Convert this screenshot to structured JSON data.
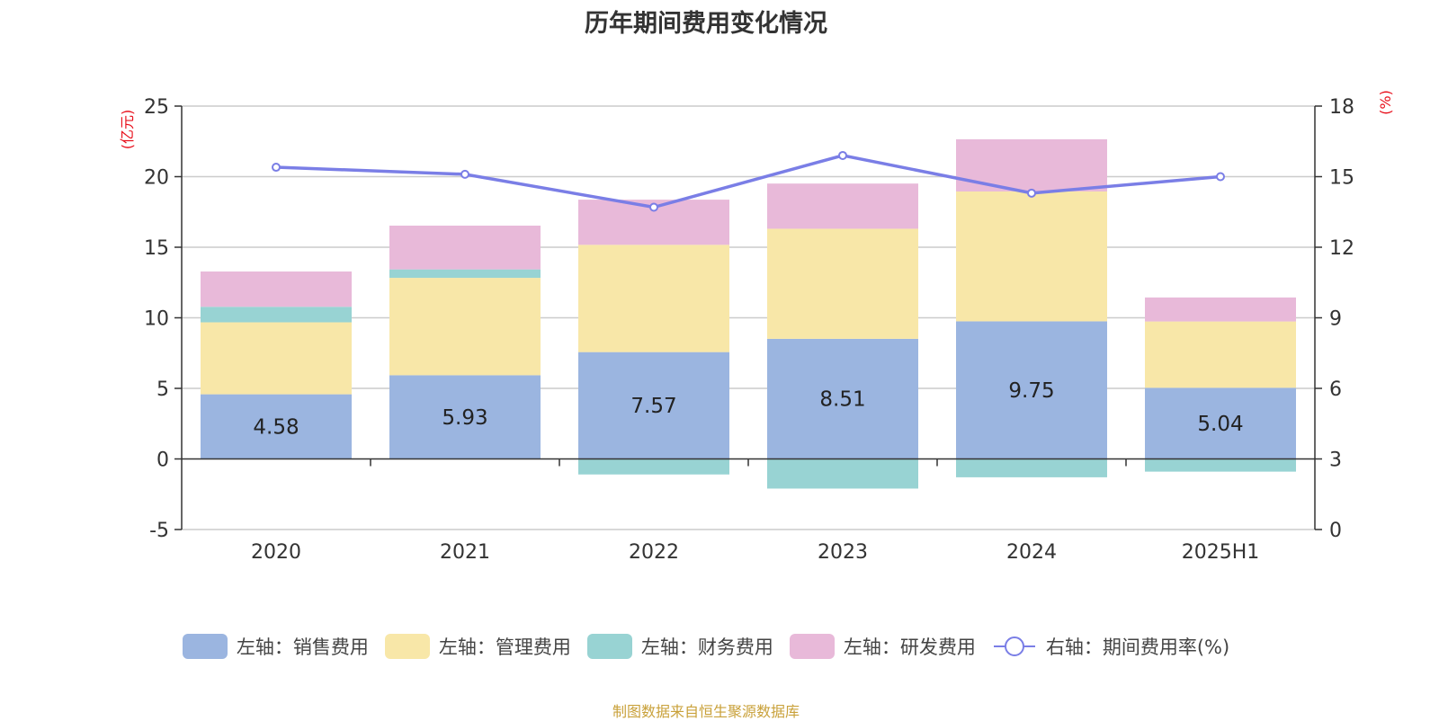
{
  "chart_data": {
    "type": "bar",
    "title": "历年期间费用变化情况",
    "categories": [
      "2020",
      "2021",
      "2022",
      "2023",
      "2024",
      "2025H1"
    ],
    "y_left": {
      "unit_label": "(亿元)",
      "min": -5,
      "max": 25,
      "ticks": [
        "-5",
        "0",
        "5",
        "10",
        "15",
        "20",
        "25"
      ]
    },
    "y_right": {
      "unit_label": "(%)",
      "min": 0,
      "max": 18,
      "ticks": [
        "0",
        "3",
        "6",
        "9",
        "12",
        "15",
        "18"
      ]
    },
    "grid": true,
    "legend_position": "bottom",
    "series": [
      {
        "name": "左轴：销售费用",
        "axis": "left",
        "kind": "bar",
        "color": "#9bb5e0",
        "values": [
          4.58,
          5.93,
          7.57,
          8.51,
          9.75,
          5.04
        ],
        "show_labels": true
      },
      {
        "name": "左轴：管理费用",
        "axis": "left",
        "kind": "bar",
        "color": "#f8e7a8",
        "values": [
          5.1,
          6.9,
          7.6,
          7.8,
          9.2,
          4.7
        ]
      },
      {
        "name": "左轴：财务费用",
        "axis": "left",
        "kind": "bar",
        "color": "#98d3d3",
        "values": [
          1.1,
          0.6,
          -1.1,
          -2.1,
          -1.3,
          -0.9
        ]
      },
      {
        "name": "左轴：研发费用",
        "axis": "left",
        "kind": "bar",
        "color": "#e8b9d9",
        "values": [
          2.5,
          3.1,
          3.2,
          3.2,
          3.7,
          1.7
        ]
      },
      {
        "name": "右轴：期间费用率(%)",
        "axis": "right",
        "kind": "line",
        "color": "#7a7ee6",
        "values": [
          15.4,
          15.1,
          13.7,
          15.9,
          14.3,
          15.0
        ]
      }
    ]
  },
  "footer": {
    "source": "制图数据来自恒生聚源数据库"
  }
}
